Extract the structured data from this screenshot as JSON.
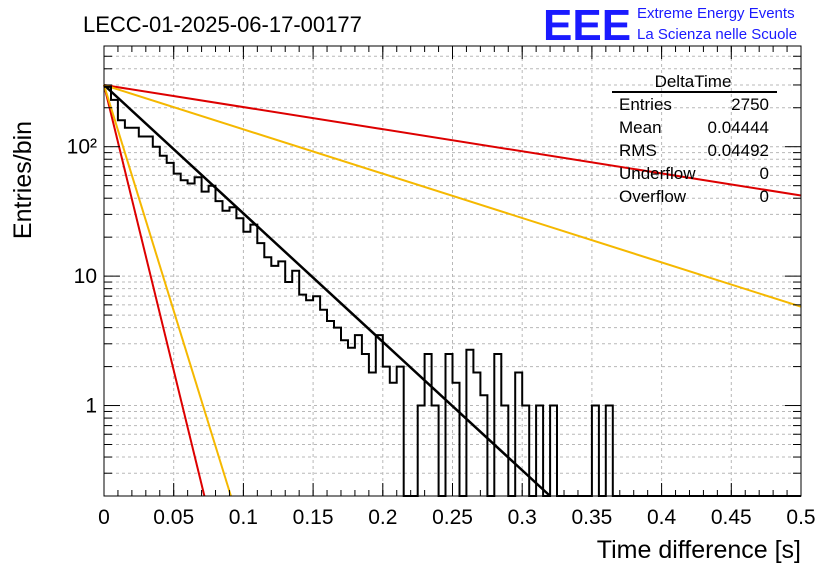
{
  "title": "LECC-01-2025-06-17-00177",
  "logo": {
    "text": "EEE",
    "line1": "Extreme Energy Events",
    "line2": "La Scienza nelle Scuole",
    "color": "#1a1aff"
  },
  "stats": {
    "name": "DeltaTime",
    "rows": [
      {
        "label": "Entries",
        "value": "2750"
      },
      {
        "label": "Mean",
        "value": "0.04444"
      },
      {
        "label": "RMS",
        "value": "0.04492"
      },
      {
        "label": "Underflow",
        "value": "0"
      },
      {
        "label": "Overflow",
        "value": "0"
      }
    ]
  },
  "chart_data": {
    "type": "line",
    "title": "LECC-01-2025-06-17-00177",
    "xlabel": "Time difference [s]",
    "ylabel": "Entries/bin",
    "xlim": [
      0,
      0.5
    ],
    "ylim": [
      0.2,
      600
    ],
    "yscale": "log",
    "grid": true,
    "x_ticks": [
      "0",
      "0.05",
      "0.1",
      "0.15",
      "0.2",
      "0.25",
      "0.3",
      "0.35",
      "0.4",
      "0.45",
      "0.5"
    ],
    "y_ticks": [
      "1",
      "10",
      "10²"
    ],
    "histogram": {
      "bin_width": 0.005,
      "values": [
        290,
        230,
        160,
        140,
        140,
        120,
        120,
        100,
        85,
        75,
        62,
        55,
        52,
        58,
        45,
        50,
        38,
        32,
        34,
        28,
        22,
        25,
        18,
        14,
        12,
        13,
        9,
        11,
        7.2,
        6.5,
        7,
        5.5,
        4.5,
        4,
        3.2,
        2.8,
        3.5,
        2.5,
        1.8,
        3.5,
        2,
        1.5,
        2,
        0.2,
        0.2,
        1,
        2.5,
        1,
        0.2,
        2.5,
        1.5,
        0.2,
        2.7,
        1.8,
        1.2,
        0.2,
        2.5,
        1,
        0.2,
        1.8,
        1,
        0.2,
        1,
        0.2,
        1,
        0.2,
        0.2,
        0.2,
        0.2,
        0.2,
        1,
        0.2,
        1,
        0.2,
        0.2,
        0.2,
        0.2,
        0.2,
        0.2,
        0.2,
        0.2,
        0.2,
        0.2,
        0.2,
        0.2,
        0.2,
        0.2,
        0.2,
        0.2,
        0.2,
        0.2,
        0.2,
        0.2,
        0.2,
        0.2,
        0.2,
        0.2,
        0.2,
        0.2,
        0.2
      ]
    },
    "series": [
      {
        "color": "#000000",
        "values": [
          [
            0,
            300
          ],
          [
            0.32,
            0.2
          ]
        ]
      },
      {
        "color": "#dd0000",
        "values": [
          [
            0,
            300
          ],
          [
            0.5,
            42
          ]
        ]
      },
      {
        "color": "#f5b800",
        "values": [
          [
            0,
            300
          ],
          [
            0.5,
            5.8
          ]
        ]
      },
      {
        "color": "#dd0000",
        "values": [
          [
            0,
            300
          ],
          [
            0.072,
            0.2
          ]
        ]
      },
      {
        "color": "#f5b800",
        "values": [
          [
            0,
            300
          ],
          [
            0.091,
            0.2
          ]
        ]
      }
    ]
  }
}
